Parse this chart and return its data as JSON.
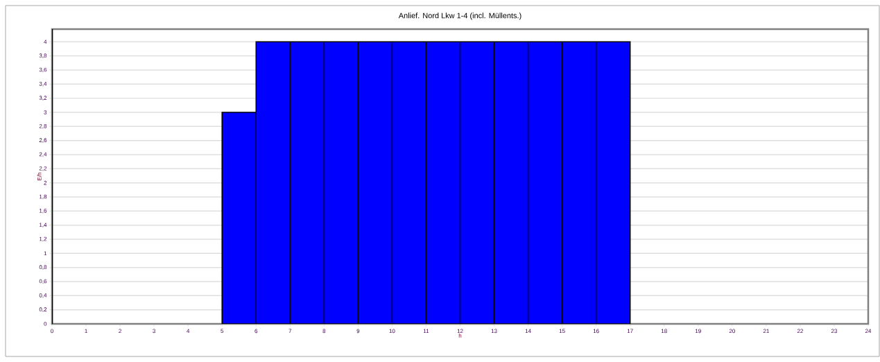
{
  "chart_data": {
    "type": "histogram",
    "title": "Anlief. Nord Lkw 1-4 (incl. Müllents.)",
    "xlabel": "h",
    "ylabel": "E/h",
    "bins": [
      5,
      6,
      7,
      8,
      9,
      10,
      11,
      12,
      13,
      14,
      15,
      16,
      17
    ],
    "values": [
      3,
      4,
      4,
      4,
      4,
      4,
      4,
      4,
      4,
      4,
      4,
      4
    ],
    "color": "#0000ff",
    "grid": "y",
    "xlim": [
      0,
      24
    ],
    "xticks": [
      0,
      1,
      2,
      3,
      4,
      5,
      6,
      7,
      8,
      9,
      10,
      11,
      12,
      13,
      14,
      15,
      16,
      17,
      18,
      19,
      20,
      21,
      22,
      23,
      24
    ],
    "ylim": [
      0,
      4.18
    ],
    "yticks": [
      0,
      {
        "value": 0.2,
        "label": "0,2"
      },
      {
        "value": 0.4,
        "label": "0,4"
      },
      {
        "value": 0.6,
        "label": "0,6"
      },
      {
        "value": 0.8,
        "label": "0,8"
      },
      1,
      {
        "value": 1.2,
        "label": "1,2"
      },
      {
        "value": 1.4,
        "label": "1,4"
      },
      {
        "value": 1.6,
        "label": "1,6"
      },
      {
        "value": 1.8,
        "label": "1,8"
      },
      2,
      {
        "value": 2.2,
        "label": "2,2"
      },
      {
        "value": 2.4,
        "label": "2,4"
      },
      {
        "value": 2.6,
        "label": "2,6"
      },
      {
        "value": 2.8,
        "label": "2,8"
      },
      3,
      {
        "value": 3.2,
        "label": "3,2"
      },
      {
        "value": 3.4,
        "label": "3,4"
      },
      {
        "value": 3.6,
        "label": "3,6"
      },
      {
        "value": 3.8,
        "label": "3,8"
      },
      4
    ]
  }
}
